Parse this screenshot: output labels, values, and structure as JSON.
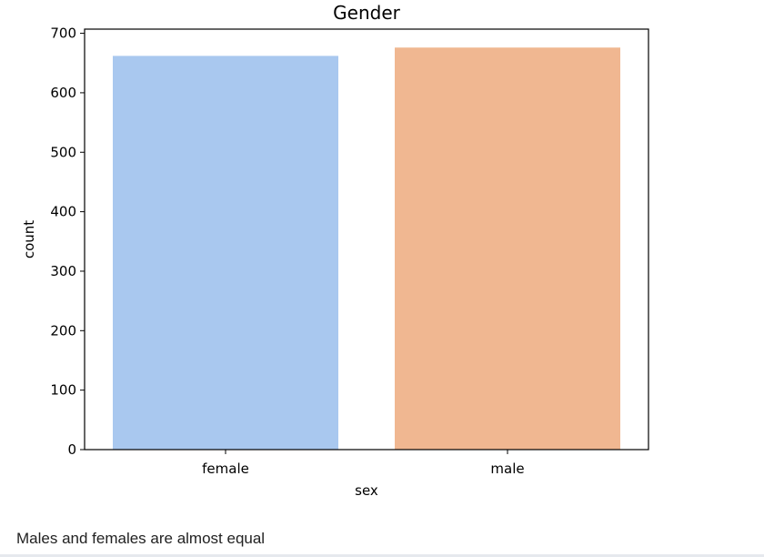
{
  "chart_data": {
    "type": "bar",
    "title": "Gender",
    "xlabel": "sex",
    "ylabel": "count",
    "categories": [
      "female",
      "male"
    ],
    "values": [
      662,
      676
    ],
    "ylim": [
      0,
      707
    ],
    "yticks": [
      0,
      100,
      200,
      300,
      400,
      500,
      600,
      700
    ],
    "colors": [
      "#a9c8ef",
      "#f0b791"
    ],
    "grid": false,
    "legend": "none"
  },
  "caption": "Males and females are almost equal"
}
